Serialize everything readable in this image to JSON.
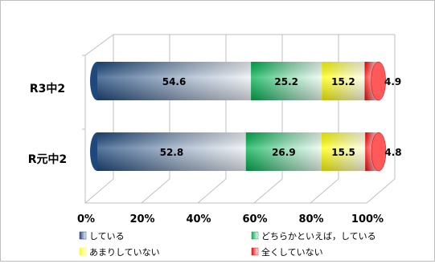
{
  "chart_data": {
    "type": "bar",
    "orientation": "horizontal",
    "stacked": "percent",
    "style": "3d-cylinder",
    "categories": [
      "R3中2",
      "R元中2"
    ],
    "series": [
      {
        "name": "している",
        "values": [
          54.6,
          52.8
        ],
        "color": "#1f497d"
      },
      {
        "name": "どちらかといえば，している",
        "values": [
          25.2,
          26.9
        ],
        "color": "#00b050"
      },
      {
        "name": "あまりしていない",
        "values": [
          15.2,
          15.5
        ],
        "color": "#ffff00"
      },
      {
        "name": "全くしていない",
        "values": [
          4.9,
          4.8
        ],
        "color": "#ff0000"
      }
    ],
    "xlim": [
      0,
      100
    ],
    "xticks": [
      "0%",
      "20%",
      "40%",
      "60%",
      "80%",
      "100%"
    ],
    "grid": true,
    "legend": "bottom"
  }
}
